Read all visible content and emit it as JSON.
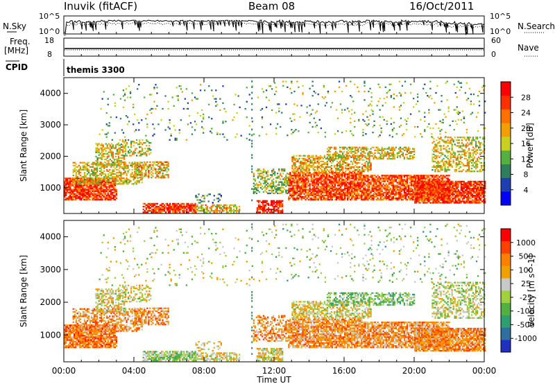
{
  "header": {
    "station": "Inuvik (fitACF)",
    "beam": "Beam 08",
    "date": "16/Oct/2011"
  },
  "small_panels": {
    "nsky_label": "N.Sky",
    "nsky_ticks": [
      "10^5",
      "10^0"
    ],
    "nsearch_label": "N.Search",
    "nsearch_ticks": [
      "10^5",
      "10^0"
    ],
    "freq_label": "Freq.",
    "freq_unit": "[MHz]",
    "freq_ticks": [
      "18",
      "8"
    ],
    "nave_label": "Nave",
    "nave_ticks": [
      "60",
      "0"
    ],
    "cpid_label": "CPID",
    "cpid_value": "themis 3300"
  },
  "chart_data": [
    {
      "type": "heatmap",
      "name": "power-panel",
      "ylabel": "Slant Range [km]",
      "yticks": [
        "4000",
        "3000",
        "2000",
        "1000"
      ],
      "ylim": [
        180,
        4500
      ],
      "xlim": [
        0,
        24
      ],
      "colorbar_label": "Power [dB]",
      "colorbar_ticks": [
        "28",
        "24",
        "20",
        "16",
        "12",
        "8",
        "4"
      ],
      "colors": [
        "#0000ff",
        "#1f3fb0",
        "#2f7f5f",
        "#55b040",
        "#c8d020",
        "#f0a000",
        "#ff7000",
        "#ff3000",
        "#ff0000"
      ]
    },
    {
      "type": "heatmap",
      "name": "velocity-panel",
      "ylabel": "Slant Range [km]",
      "yticks": [
        "4000",
        "3000",
        "2000",
        "1000"
      ],
      "ylim": [
        180,
        4500
      ],
      "xlim": [
        0,
        24
      ],
      "colorbar_label": "Velocity [m s^-1]",
      "colorbar_ticks": [
        "1000",
        "500",
        "100",
        "25",
        "-25",
        "-100",
        "-500",
        "-1000"
      ],
      "colors": [
        "#2030c0",
        "#2f6fa0",
        "#2f9f70",
        "#50b040",
        "#a0d040",
        "#c8c8c8",
        "#f0a000",
        "#ff8000",
        "#ff4000",
        "#ff0000"
      ]
    }
  ],
  "xaxis": {
    "ticks": [
      "00:00",
      "04:00",
      "08:00",
      "12:00",
      "16:00",
      "20:00",
      "00:00"
    ],
    "label": "Time UT"
  }
}
